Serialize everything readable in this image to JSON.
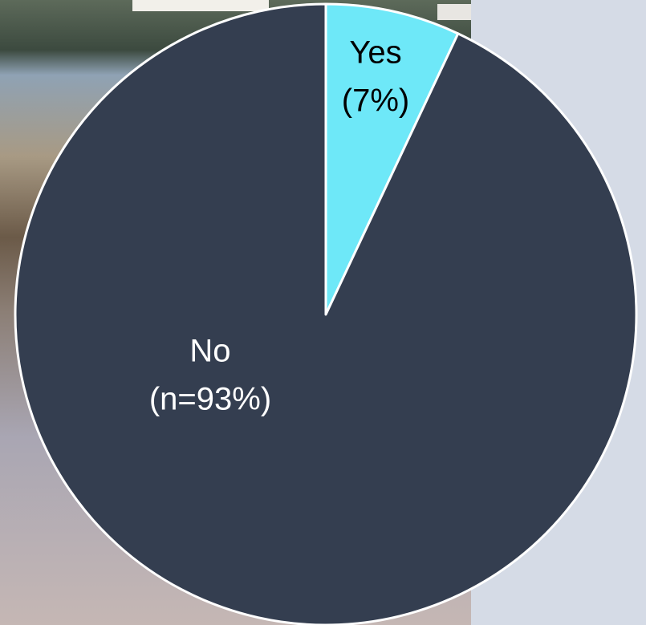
{
  "chart_data": {
    "type": "pie",
    "categories": [
      "Yes",
      "No"
    ],
    "values": [
      7,
      93
    ],
    "value_labels": [
      "(7%)",
      "(n=93%)"
    ],
    "colors": [
      "#6ee8f8",
      "#343e50"
    ],
    "label_colors": [
      "#000000",
      "#ffffff"
    ]
  }
}
